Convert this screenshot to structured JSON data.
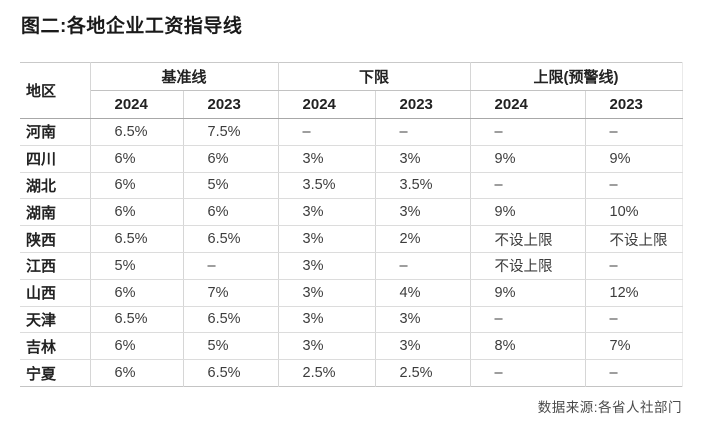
{
  "title": "图二:各地企业工资指导线",
  "header": {
    "region": "地区",
    "groups": [
      "基准线",
      "下限",
      "上限(预警线)"
    ],
    "years": [
      "2024",
      "2023",
      "2024",
      "2023",
      "2024",
      "2023"
    ]
  },
  "chart_data": {
    "type": "table",
    "title": "图二:各地企业工资指导线",
    "column_groups": [
      "基准线",
      "下限",
      "上限(预警线)"
    ],
    "columns": [
      "地区",
      "基准线 2024",
      "基准线 2023",
      "下限 2024",
      "下限 2023",
      "上限(预警线) 2024",
      "上限(预警线) 2023"
    ],
    "rows": [
      {
        "region": "河南",
        "values": [
          "6.5%",
          "7.5%",
          "–",
          "–",
          "–",
          "–"
        ]
      },
      {
        "region": "四川",
        "values": [
          "6%",
          "6%",
          "3%",
          "3%",
          "9%",
          "9%"
        ]
      },
      {
        "region": "湖北",
        "values": [
          "6%",
          "5%",
          "3.5%",
          "3.5%",
          "–",
          "–"
        ]
      },
      {
        "region": "湖南",
        "values": [
          "6%",
          "6%",
          "3%",
          "3%",
          "9%",
          "10%"
        ]
      },
      {
        "region": "陕西",
        "values": [
          "6.5%",
          "6.5%",
          "3%",
          "2%",
          "不设上限",
          "不设上限"
        ]
      },
      {
        "region": "江西",
        "values": [
          "5%",
          "–",
          "3%",
          "–",
          "不设上限",
          "–"
        ]
      },
      {
        "region": "山西",
        "values": [
          "6%",
          "7%",
          "3%",
          "4%",
          "9%",
          "12%"
        ]
      },
      {
        "region": "天津",
        "values": [
          "6.5%",
          "6.5%",
          "3%",
          "3%",
          "–",
          "–"
        ]
      },
      {
        "region": "吉林",
        "values": [
          "6%",
          "5%",
          "3%",
          "3%",
          "8%",
          "7%"
        ]
      },
      {
        "region": "宁夏",
        "values": [
          "6%",
          "6.5%",
          "2.5%",
          "2.5%",
          "–",
          "–"
        ]
      }
    ],
    "no_data_symbol": "–",
    "no_upper_limit_label": "不设上限",
    "source": "数据来源:各省人社部门"
  },
  "source": "数据来源:各省人社部门",
  "colors": {
    "text_dark": "#1a1a1a",
    "text_body": "#3c3c3c",
    "border_light": "#dcdcdc",
    "border_vertical": "#d6d6d6",
    "border_header": "#a8a8a8",
    "background": "#ffffff"
  }
}
